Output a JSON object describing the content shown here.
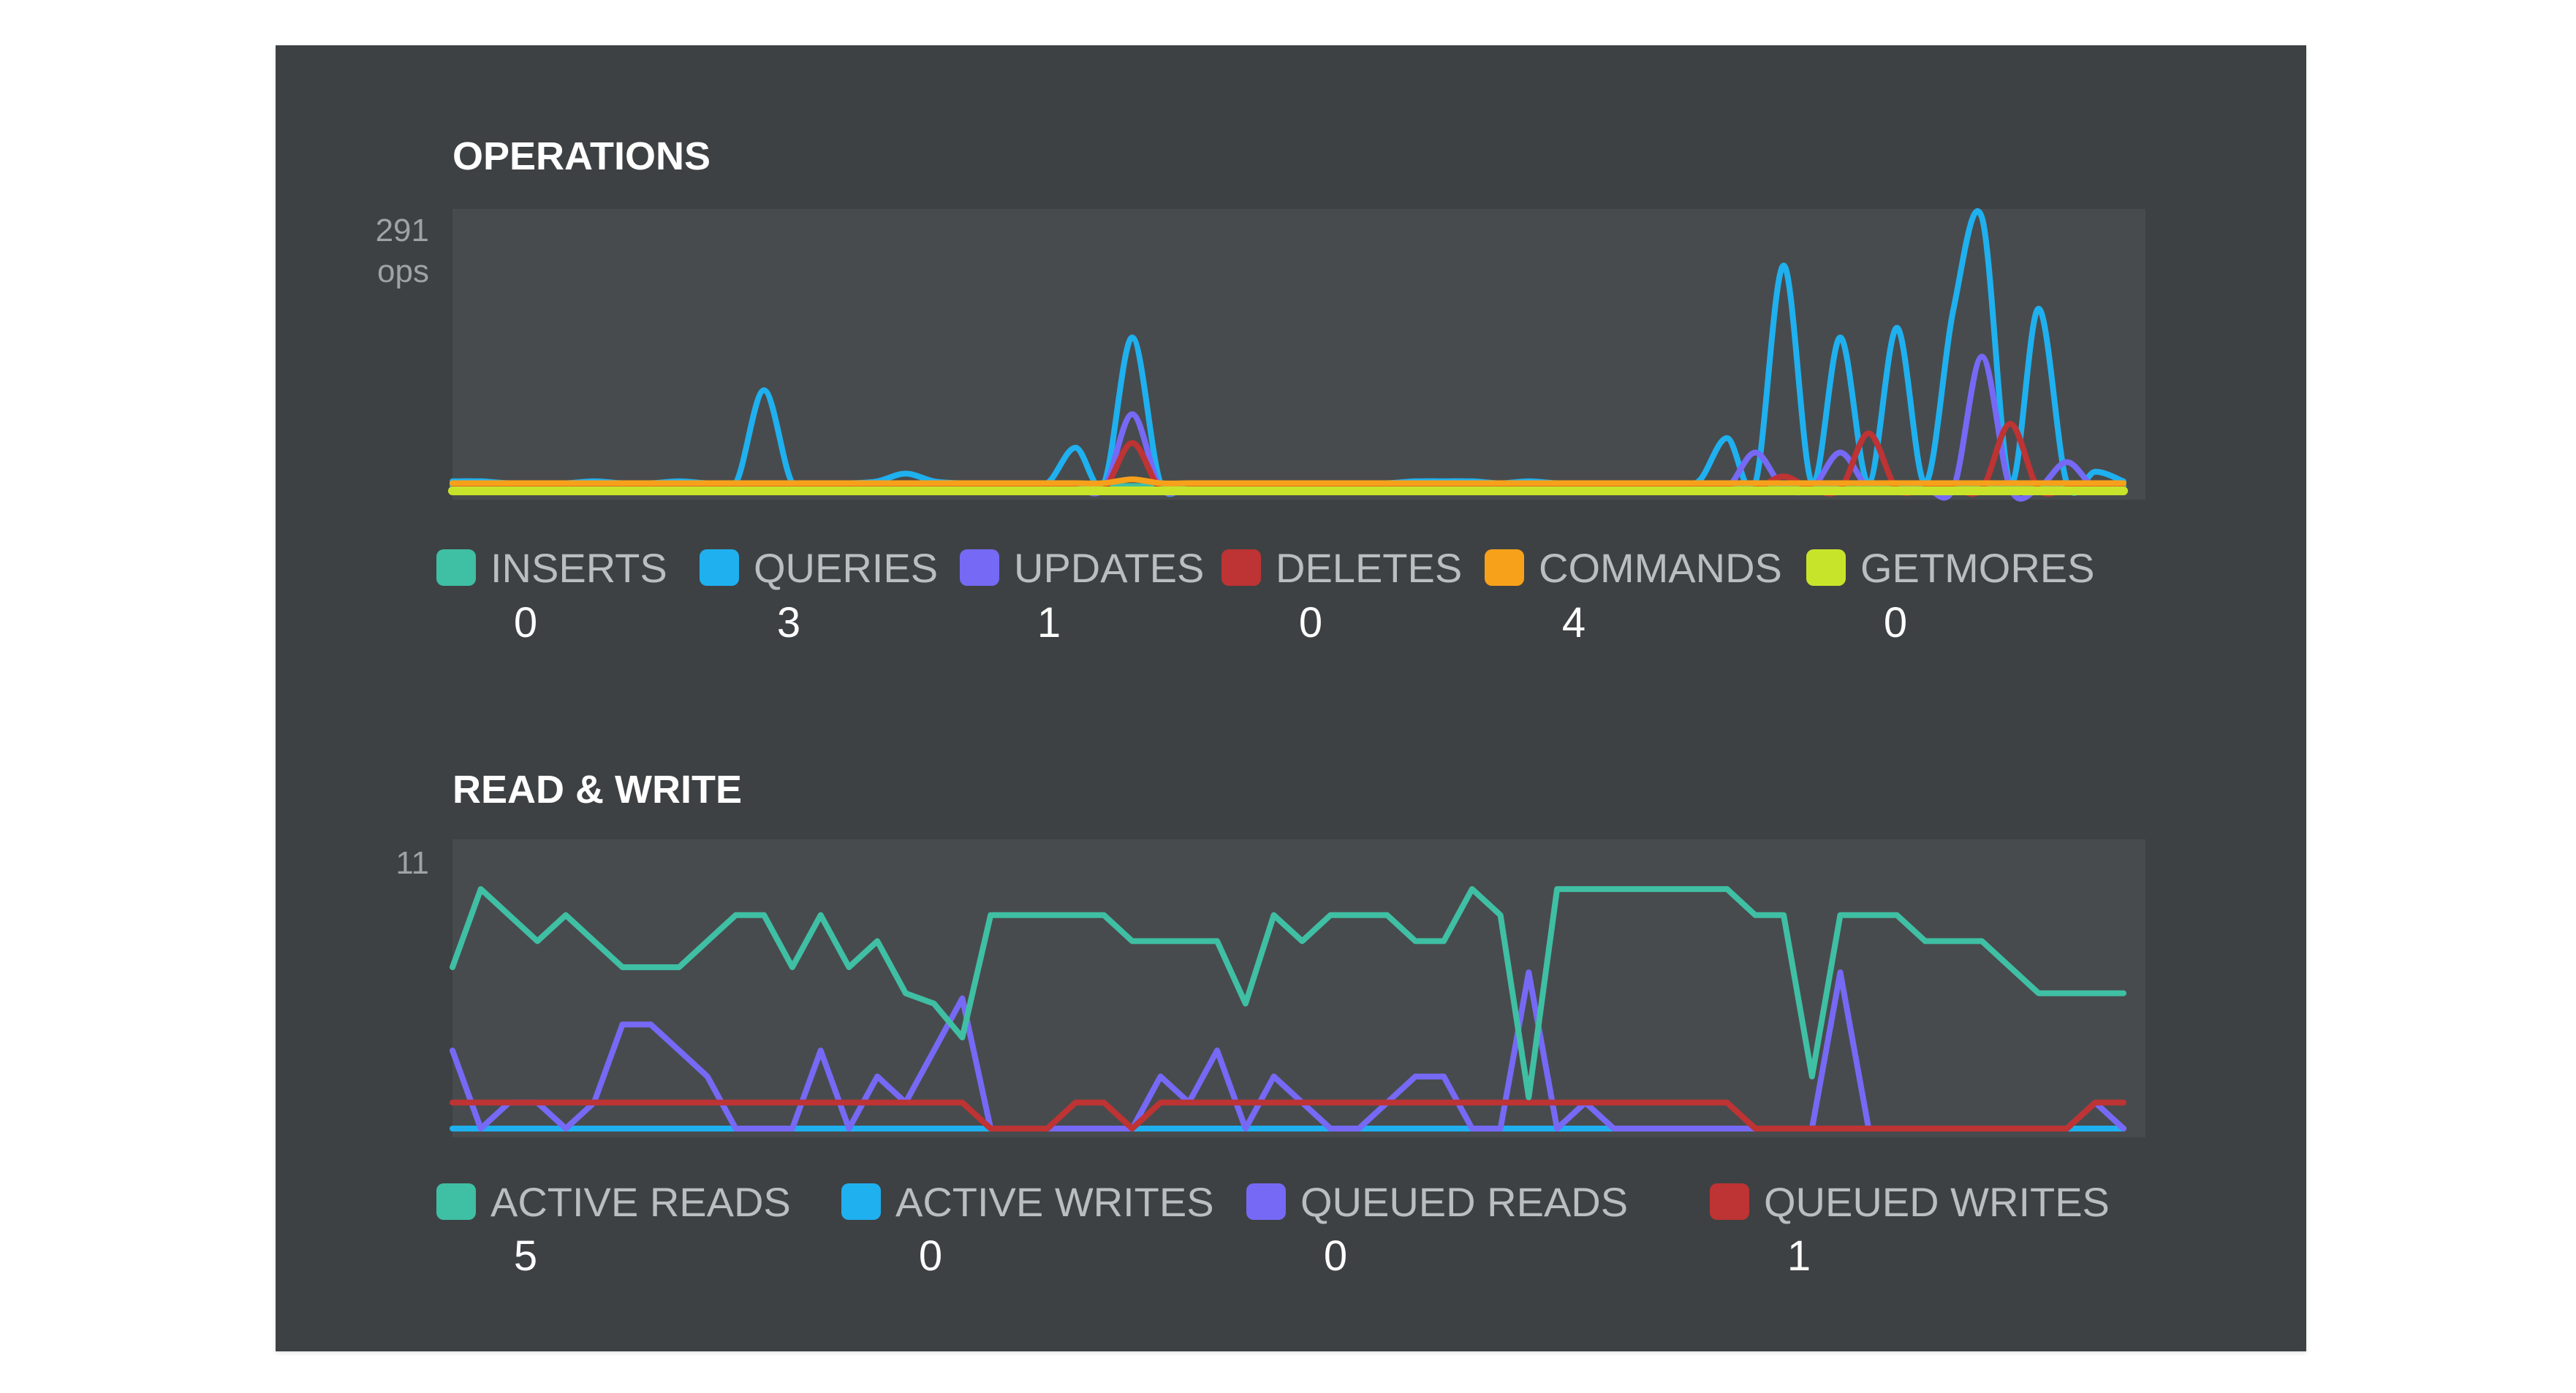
{
  "chart_data": [
    {
      "type": "line",
      "title": "OPERATIONS",
      "y_max_label": "291",
      "y_unit_label": "ops",
      "ylim": [
        0,
        291
      ],
      "x": [
        0,
        1,
        2,
        3,
        4,
        5,
        6,
        7,
        8,
        9,
        10,
        11,
        12,
        13,
        14,
        15,
        16,
        17,
        18,
        19,
        20,
        21,
        22,
        23,
        24,
        25,
        26,
        27,
        28,
        29,
        30,
        31,
        32,
        33,
        34,
        35,
        36,
        37,
        38,
        39,
        40,
        41,
        42,
        43,
        44,
        45,
        46,
        47,
        48,
        49,
        50,
        51,
        52,
        53,
        54,
        55,
        56,
        57,
        58,
        59
      ],
      "series": [
        {
          "name": "INSERTS",
          "color": "#3fbfa4",
          "current": "0",
          "values": [
            6,
            6,
            5,
            5,
            5,
            5,
            5,
            5,
            5,
            5,
            5,
            5,
            5,
            5,
            5,
            5,
            5,
            5,
            5,
            5,
            5,
            5,
            5,
            5,
            5,
            5,
            5,
            5,
            5,
            5,
            5,
            5,
            5,
            5,
            5,
            5,
            5,
            5,
            5,
            5,
            5,
            5,
            5,
            5,
            5,
            5,
            5,
            5,
            5,
            5,
            5,
            5,
            5,
            5,
            5,
            5,
            5,
            5,
            5,
            5
          ]
        },
        {
          "name": "QUERIES",
          "color": "#1fb0ef",
          "current": "3",
          "values": [
            10,
            10,
            8,
            8,
            8,
            10,
            8,
            8,
            10,
            8,
            8,
            105,
            8,
            8,
            8,
            10,
            18,
            10,
            8,
            8,
            8,
            8,
            45,
            8,
            160,
            8,
            8,
            8,
            8,
            8,
            8,
            8,
            8,
            8,
            10,
            10,
            10,
            8,
            10,
            8,
            8,
            8,
            8,
            8,
            10,
            55,
            8,
            235,
            8,
            160,
            8,
            170,
            8,
            190,
            285,
            8,
            190,
            8,
            20,
            10
          ]
        },
        {
          "name": "UPDATES",
          "color": "#7669f5",
          "current": "1",
          "values": [
            3,
            3,
            3,
            3,
            3,
            3,
            3,
            3,
            3,
            3,
            3,
            3,
            3,
            3,
            3,
            3,
            3,
            3,
            3,
            3,
            3,
            3,
            3,
            3,
            80,
            3,
            3,
            3,
            3,
            3,
            3,
            3,
            3,
            3,
            3,
            3,
            3,
            3,
            3,
            3,
            3,
            3,
            3,
            3,
            3,
            3,
            40,
            3,
            3,
            40,
            3,
            3,
            3,
            3,
            140,
            3,
            3,
            30,
            3,
            3
          ]
        },
        {
          "name": "DELETES",
          "color": "#be3333",
          "current": "0",
          "values": [
            2,
            2,
            2,
            2,
            2,
            2,
            2,
            2,
            2,
            2,
            2,
            2,
            2,
            2,
            2,
            2,
            2,
            2,
            2,
            2,
            2,
            2,
            2,
            2,
            50,
            2,
            2,
            2,
            2,
            2,
            2,
            2,
            2,
            2,
            2,
            2,
            2,
            2,
            2,
            2,
            2,
            2,
            2,
            2,
            2,
            2,
            2,
            15,
            2,
            2,
            60,
            2,
            2,
            2,
            2,
            70,
            2,
            2,
            2,
            2
          ]
        },
        {
          "name": "COMMANDS",
          "color": "#f7a11a",
          "current": "4",
          "values": [
            8,
            8,
            8,
            8,
            8,
            8,
            8,
            8,
            8,
            8,
            8,
            8,
            8,
            8,
            8,
            8,
            8,
            8,
            8,
            8,
            8,
            8,
            8,
            8,
            12,
            8,
            8,
            8,
            8,
            8,
            8,
            8,
            8,
            8,
            8,
            8,
            8,
            8,
            8,
            8,
            8,
            8,
            8,
            8,
            8,
            8,
            8,
            8,
            8,
            8,
            8,
            8,
            8,
            8,
            8,
            8,
            8,
            8,
            8,
            8
          ]
        },
        {
          "name": "GETMORES",
          "color": "#c8e42a",
          "current": "0",
          "values": [
            0,
            0,
            0,
            0,
            0,
            0,
            0,
            0,
            0,
            0,
            0,
            0,
            0,
            0,
            0,
            0,
            0,
            0,
            0,
            0,
            0,
            0,
            0,
            0,
            0,
            0,
            0,
            0,
            0,
            0,
            0,
            0,
            0,
            0,
            0,
            0,
            0,
            0,
            0,
            0,
            0,
            0,
            0,
            0,
            0,
            0,
            0,
            0,
            0,
            0,
            0,
            0,
            0,
            0,
            0,
            0,
            0,
            0,
            0,
            0
          ]
        }
      ]
    },
    {
      "type": "line",
      "title": "READ & WRITE",
      "y_max_label": "11",
      "y_unit_label": "",
      "ylim": [
        0,
        11
      ],
      "x": [
        0,
        1,
        2,
        3,
        4,
        5,
        6,
        7,
        8,
        9,
        10,
        11,
        12,
        13,
        14,
        15,
        16,
        17,
        18,
        19,
        20,
        21,
        22,
        23,
        24,
        25,
        26,
        27,
        28,
        29,
        30,
        31,
        32,
        33,
        34,
        35,
        36,
        37,
        38,
        39,
        40,
        41,
        42,
        43,
        44,
        45,
        46,
        47,
        48,
        49,
        50,
        51,
        52,
        53,
        54,
        55,
        56,
        57,
        58,
        59
      ],
      "series": [
        {
          "name": "ACTIVE READS",
          "color": "#3fbfa4",
          "current": "5",
          "values": [
            6.2,
            9.2,
            8.2,
            7.2,
            8.2,
            7.2,
            6.2,
            6.2,
            6.2,
            7.2,
            8.2,
            8.2,
            6.2,
            8.2,
            6.2,
            7.2,
            5.2,
            4.8,
            3.5,
            8.2,
            8.2,
            8.2,
            8.2,
            8.2,
            7.2,
            7.2,
            7.2,
            7.2,
            4.8,
            8.2,
            7.2,
            8.2,
            8.2,
            8.2,
            7.2,
            7.2,
            9.2,
            8.2,
            1.2,
            9.2,
            9.2,
            9.2,
            9.2,
            9.2,
            9.2,
            9.2,
            8.2,
            8.2,
            2.0,
            8.2,
            8.2,
            8.2,
            7.2,
            7.2,
            7.2,
            6.2,
            5.2,
            5.2,
            5.2,
            5.2
          ]
        },
        {
          "name": "ACTIVE WRITES",
          "color": "#1fb0ef",
          "current": "0",
          "values": [
            0,
            0,
            0,
            0,
            0,
            0,
            0,
            0,
            0,
            0,
            0,
            0,
            0,
            0,
            0,
            0,
            0,
            0,
            0,
            0,
            0,
            0,
            0,
            0,
            0,
            0,
            0,
            0,
            0,
            0,
            0,
            0,
            0,
            0,
            0,
            0,
            0,
            0,
            0,
            0,
            0,
            0,
            0,
            0,
            0,
            0,
            0,
            0,
            0,
            0,
            0,
            0,
            0,
            0,
            0,
            0,
            0,
            0,
            0,
            0
          ]
        },
        {
          "name": "QUEUED READS",
          "color": "#7669f5",
          "current": "0",
          "values": [
            3,
            0,
            1,
            1,
            0,
            1,
            4,
            4,
            3,
            2,
            0,
            0,
            0,
            3,
            0,
            2,
            1,
            3,
            5,
            0,
            0,
            0,
            0,
            0,
            0,
            2,
            1,
            3,
            0,
            2,
            1,
            0,
            0,
            1,
            2,
            2,
            0,
            0,
            6,
            0,
            1,
            0,
            0,
            0,
            0,
            0,
            0,
            0,
            0,
            6,
            0,
            0,
            0,
            0,
            0,
            0,
            0,
            0,
            1,
            0
          ]
        },
        {
          "name": "QUEUED WRITES",
          "color": "#be3333",
          "current": "1",
          "values": [
            1,
            1,
            1,
            1,
            1,
            1,
            1,
            1,
            1,
            1,
            1,
            1,
            1,
            1,
            1,
            1,
            1,
            1,
            1,
            0,
            0,
            0,
            1,
            1,
            0,
            1,
            1,
            1,
            1,
            1,
            1,
            1,
            1,
            1,
            1,
            1,
            1,
            1,
            1,
            1,
            1,
            1,
            1,
            1,
            1,
            1,
            0,
            0,
            0,
            0,
            0,
            0,
            0,
            0,
            0,
            0,
            0,
            0,
            1,
            1
          ]
        }
      ]
    }
  ]
}
